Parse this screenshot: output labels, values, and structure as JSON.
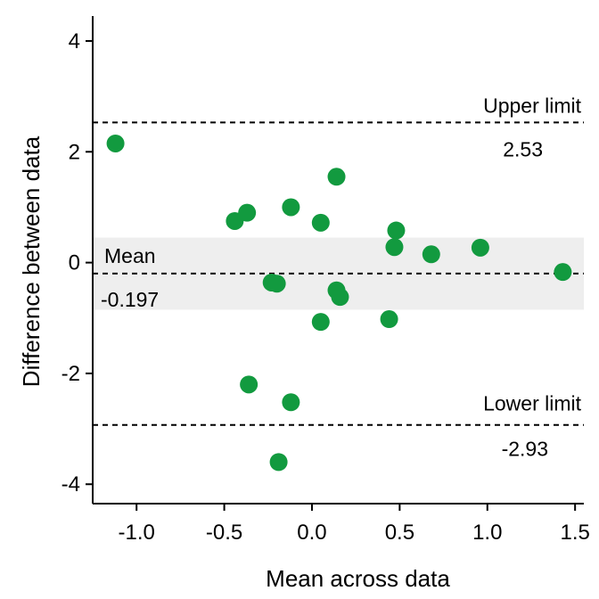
{
  "chart_data": {
    "type": "scatter",
    "xlabel": "Mean across data",
    "ylabel": "Difference between data",
    "xlim": [
      -1.25,
      1.55
    ],
    "ylim": [
      -4.35,
      4.45
    ],
    "xticks": [
      -1.0,
      -0.5,
      0.0,
      0.5,
      1.0,
      1.5
    ],
    "xtick_labels": [
      "-1.0",
      "-0.5",
      "0.0",
      "0.5",
      "1.0",
      "1.5"
    ],
    "yticks": [
      -4,
      -2,
      0,
      2,
      4
    ],
    "ytick_labels": [
      "-4",
      "-2",
      "0",
      "2",
      "4"
    ],
    "grid": false,
    "point_color": "#129a3f",
    "band_color": "#eeeeee",
    "mean": {
      "label": "Mean",
      "value": -0.197,
      "value_text": "-0.197"
    },
    "upper_limit": {
      "label": "Upper limit",
      "value": 2.53,
      "value_text": "2.53"
    },
    "lower_limit": {
      "label": "Lower limit",
      "value": -2.93,
      "value_text": "-2.93"
    },
    "mean_band": [
      -0.85,
      0.45
    ],
    "points": [
      {
        "x": -1.12,
        "y": 2.15
      },
      {
        "x": -0.44,
        "y": 0.75
      },
      {
        "x": -0.37,
        "y": 0.9
      },
      {
        "x": -0.12,
        "y": 1.0
      },
      {
        "x": 0.05,
        "y": 0.72
      },
      {
        "x": 0.14,
        "y": 1.55
      },
      {
        "x": 0.48,
        "y": 0.58
      },
      {
        "x": 0.47,
        "y": 0.28
      },
      {
        "x": 0.68,
        "y": 0.15
      },
      {
        "x": 0.96,
        "y": 0.27
      },
      {
        "x": 1.43,
        "y": -0.17
      },
      {
        "x": -0.23,
        "y": -0.36
      },
      {
        "x": -0.2,
        "y": -0.38
      },
      {
        "x": 0.14,
        "y": -0.5
      },
      {
        "x": 0.16,
        "y": -0.62
      },
      {
        "x": 0.05,
        "y": -1.07
      },
      {
        "x": 0.44,
        "y": -1.02
      },
      {
        "x": -0.36,
        "y": -2.2
      },
      {
        "x": -0.12,
        "y": -2.52
      },
      {
        "x": -0.19,
        "y": -3.6
      }
    ]
  }
}
